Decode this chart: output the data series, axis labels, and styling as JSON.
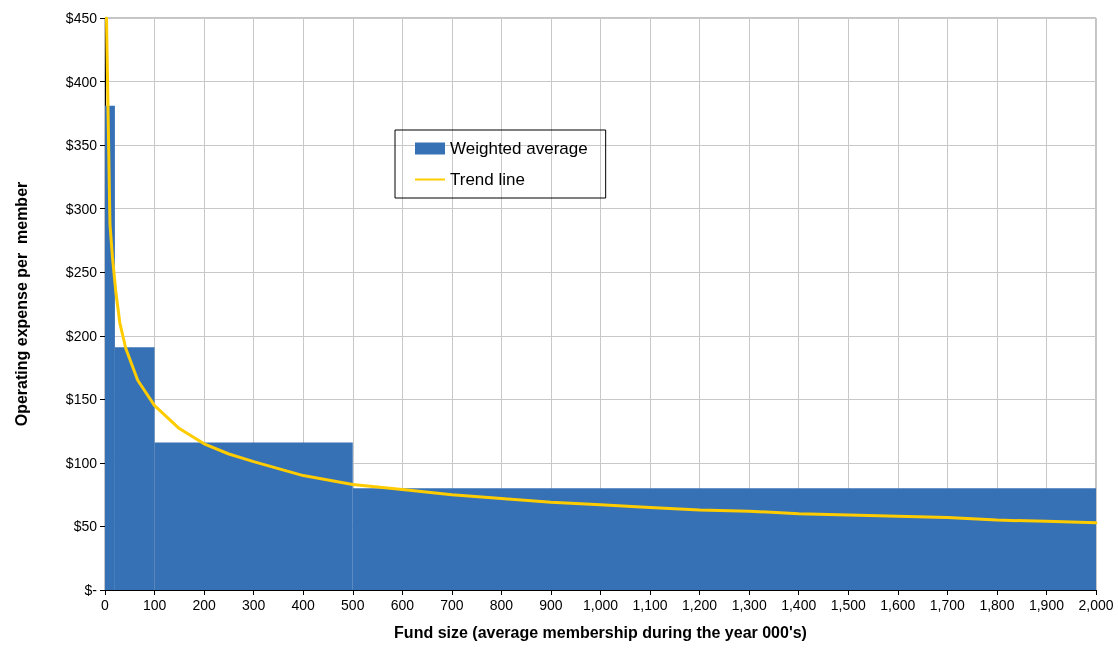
{
  "chart_data": {
    "type": "histogram",
    "xlabel": "Fund size (average membership during the year 000's)",
    "ylabel": "Operating expense per  member",
    "series": [
      {
        "name": "Weighted average",
        "color": "#3671b5",
        "bins": [
          0,
          20,
          100,
          500,
          2000
        ],
        "values": [
          381,
          191,
          116,
          80
        ]
      },
      {
        "type": "line",
        "name": "Trend line",
        "color": "#ffcc00",
        "x": [
          3,
          10,
          15,
          22,
          30,
          42,
          66,
          100,
          150,
          200,
          250,
          300,
          400,
          500,
          600,
          700,
          800,
          900,
          1000,
          1100,
          1200,
          1300,
          1400,
          1500,
          1600,
          1700,
          1800,
          1900,
          2000
        ],
        "values": [
          450,
          288,
          262,
          234,
          210,
          190,
          165,
          145,
          127,
          115,
          107,
          101,
          90,
          83,
          79,
          75,
          72,
          69,
          67,
          65,
          63,
          62,
          60,
          59,
          58,
          57,
          55,
          54,
          53
        ]
      }
    ],
    "xlim": [
      0,
      2000
    ],
    "xticks": [
      0,
      100,
      200,
      300,
      400,
      500,
      600,
      700,
      800,
      900,
      {
        "value": 1000,
        "label": "1,000"
      },
      {
        "value": 1100,
        "label": "1,100"
      },
      {
        "value": 1200,
        "label": "1,200"
      },
      {
        "value": 1300,
        "label": "1,300"
      },
      {
        "value": 1400,
        "label": "1,400"
      },
      {
        "value": 1500,
        "label": "1,500"
      },
      {
        "value": 1600,
        "label": "1,600"
      },
      {
        "value": 1700,
        "label": "1,700"
      },
      {
        "value": 1800,
        "label": "1,800"
      },
      {
        "value": 1900,
        "label": "1,900"
      },
      {
        "value": 2000,
        "label": "2,000"
      }
    ],
    "ylim": [
      0,
      450
    ],
    "yticks": [
      {
        "value": 0,
        "label": "$-"
      },
      {
        "value": 50,
        "label": "$50"
      },
      {
        "value": 100,
        "label": "$100"
      },
      {
        "value": 150,
        "label": "$150"
      },
      {
        "value": 200,
        "label": "$200"
      },
      {
        "value": 250,
        "label": "$250"
      },
      {
        "value": 300,
        "label": "$300"
      },
      {
        "value": 350,
        "label": "$350"
      },
      {
        "value": 400,
        "label": "$400"
      },
      {
        "value": 450,
        "label": "$450"
      }
    ],
    "grid": true,
    "legend": "top",
    "marker": "none"
  }
}
